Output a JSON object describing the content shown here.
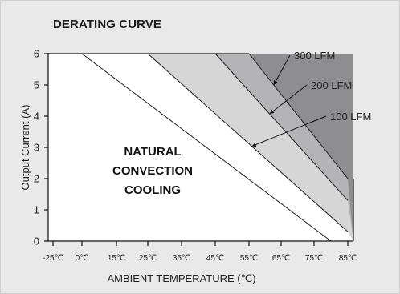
{
  "chart_data": {
    "type": "area",
    "title": "DERATING CURVE",
    "xlabel": "AMBIENT TEMPERATURE (℃)",
    "ylabel": "Output Current (A)",
    "x_tick_labels": [
      "-25℃",
      "0℃",
      "15℃",
      "25℃",
      "35℃",
      "45℃",
      "55℃",
      "65℃",
      "75℃",
      "85℃"
    ],
    "y_ticks": [
      0,
      1,
      2,
      3,
      4,
      5,
      6
    ],
    "ylim": [
      0,
      6
    ],
    "region_label": [
      "NATURAL",
      "CONVECTION",
      "COOLING"
    ],
    "series": [
      {
        "name": "NATURAL CONVECTION COOLING",
        "x": [
          "0℃",
          "80℃"
        ],
        "y": [
          6,
          0
        ],
        "color": "#ffffff"
      },
      {
        "name": "100 LFM",
        "x": [
          "25℃",
          "85℃"
        ],
        "y": [
          6,
          0.3
        ],
        "color": "#d6d6d7"
      },
      {
        "name": "200 LFM",
        "x": [
          "45℃",
          "85℃"
        ],
        "y": [
          6,
          1.3
        ],
        "color": "#b4b4b6"
      },
      {
        "name": "300 LFM",
        "x": [
          "55℃",
          "85℃"
        ],
        "y": [
          6,
          2.0
        ],
        "color": "#8e8e90"
      }
    ],
    "grid": false
  }
}
